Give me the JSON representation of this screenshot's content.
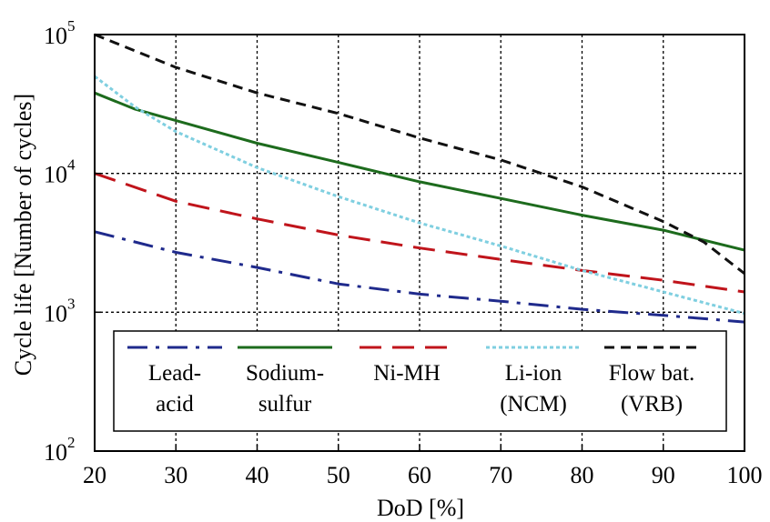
{
  "chart_data": {
    "type": "line",
    "xlabel": "DoD [%]",
    "ylabel": "Cycle life [Number of cycles]",
    "xlim": [
      20,
      100
    ],
    "ylim": [
      100,
      100000
    ],
    "y_scale": "log",
    "grid": true,
    "legend_position": "inside-bottom",
    "x_ticks": [
      "20",
      "30",
      "40",
      "50",
      "60",
      "70",
      "80",
      "90",
      "100"
    ],
    "y_ticks": [
      {
        "base": "10",
        "exp": "2",
        "value": 100
      },
      {
        "base": "10",
        "exp": "3",
        "value": 1000
      },
      {
        "base": "10",
        "exp": "4",
        "value": 10000
      },
      {
        "base": "10",
        "exp": "5",
        "value": 100000
      }
    ],
    "series": [
      {
        "name": "Lead-acid",
        "label_lines": [
          "Lead-",
          "acid"
        ],
        "color": "#1f2a8c",
        "dash": "dashdot",
        "x": [
          20,
          30,
          40,
          50,
          60,
          70,
          80,
          90,
          100
        ],
        "y": [
          3800,
          2700,
          2100,
          1600,
          1350,
          1200,
          1050,
          950,
          850
        ]
      },
      {
        "name": "Sodium-sulfur",
        "label_lines": [
          "Sodium-",
          "sulfur"
        ],
        "color": "#1d6b1d",
        "dash": "solid",
        "x": [
          20,
          25,
          30,
          40,
          50,
          60,
          70,
          80,
          90,
          100
        ],
        "y": [
          38000,
          29000,
          24000,
          16500,
          12000,
          8700,
          6600,
          5000,
          3900,
          2800
        ]
      },
      {
        "name": "Ni-MH",
        "label_lines": [
          "Ni-MH"
        ],
        "color": "#c0141b",
        "dash": "longdash",
        "x": [
          20,
          30,
          40,
          50,
          60,
          70,
          80,
          90,
          100
        ],
        "y": [
          10000,
          6300,
          4700,
          3600,
          2900,
          2400,
          2000,
          1700,
          1400
        ]
      },
      {
        "name": "Li-ion (NCM)",
        "label_lines": [
          "Li-ion",
          "(NCM)"
        ],
        "color": "#7fcfe0",
        "dash": "dotted",
        "x": [
          20,
          25,
          30,
          40,
          50,
          60,
          70,
          80,
          90,
          100
        ],
        "y": [
          50000,
          30000,
          20000,
          11000,
          6800,
          4400,
          3000,
          2000,
          1400,
          980
        ]
      },
      {
        "name": "Flow bat. (VRB)",
        "label_lines": [
          "Flow bat.",
          "(VRB)"
        ],
        "color": "#111111",
        "dash": "dashed",
        "x": [
          20,
          30,
          40,
          50,
          60,
          70,
          75,
          80,
          90,
          95,
          100
        ],
        "y": [
          100000,
          58000,
          38000,
          27000,
          18000,
          12500,
          10000,
          8000,
          4500,
          3200,
          1900
        ]
      }
    ]
  }
}
